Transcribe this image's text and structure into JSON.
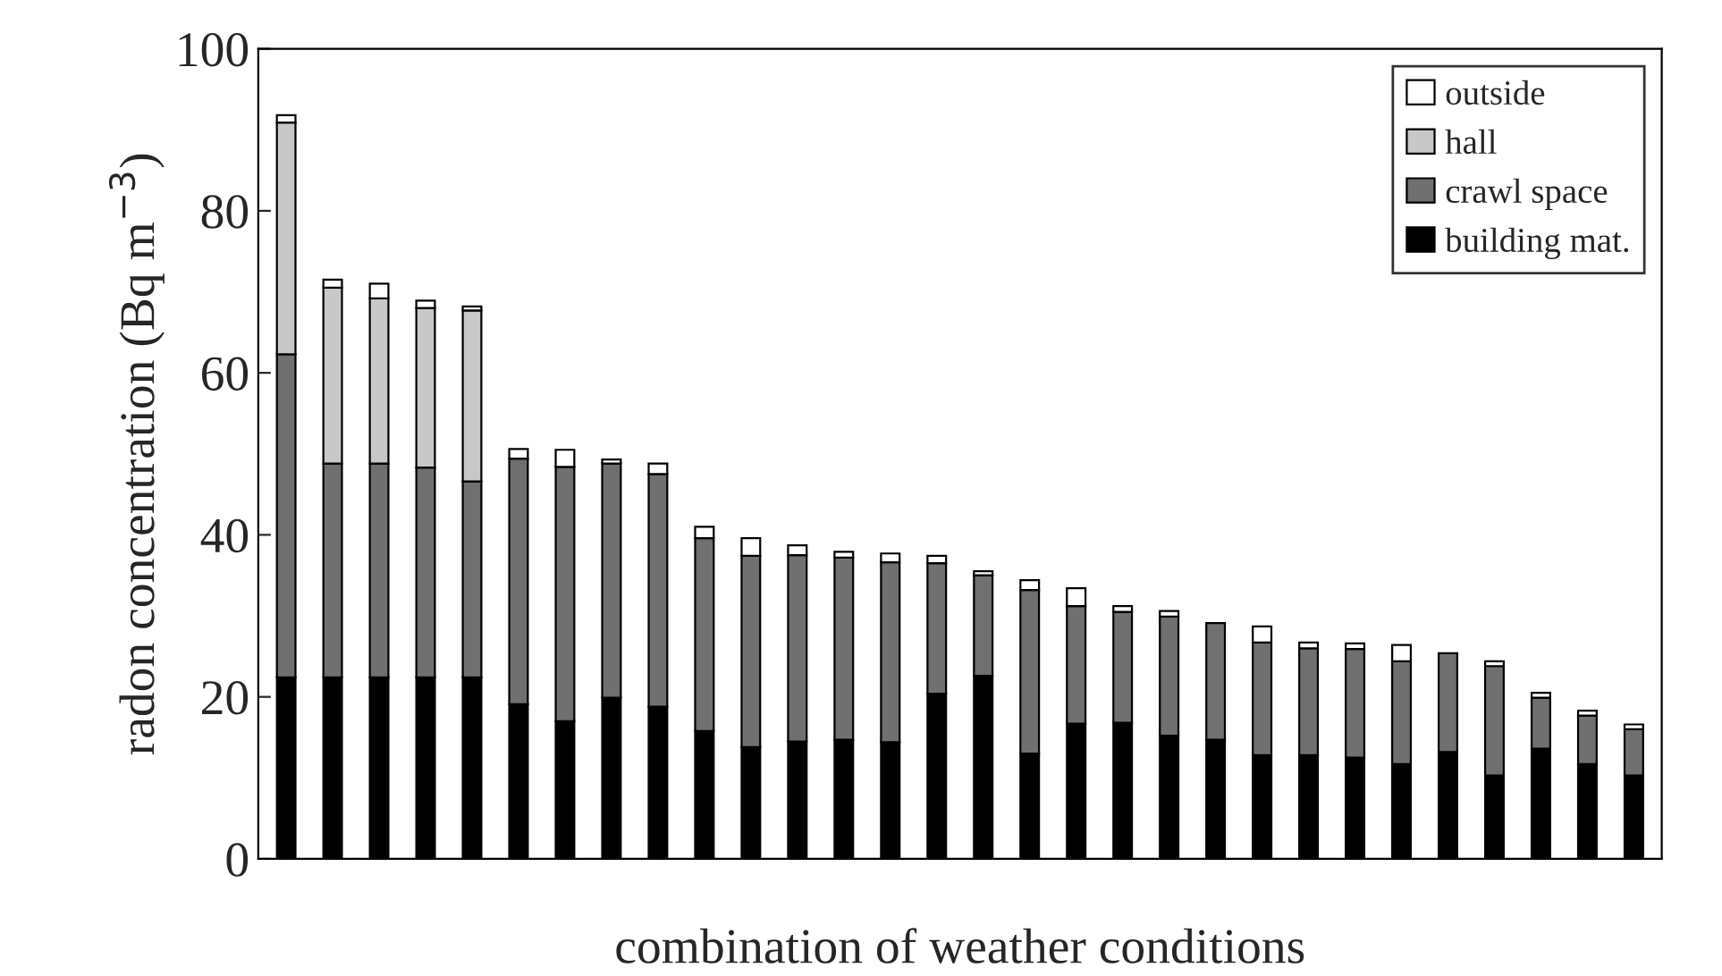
{
  "chart_data": {
    "type": "bar",
    "stacked": true,
    "xlabel": "combination of weather conditions",
    "ylabel": "radon concentration (Bq m$^{−3}$)",
    "categories": [
      null,
      null,
      null,
      null,
      null,
      null,
      null,
      null,
      null,
      null,
      null,
      null,
      null,
      null,
      null,
      null,
      null,
      null,
      null,
      null,
      null,
      null,
      null,
      null,
      null,
      null,
      null,
      null,
      null,
      null
    ],
    "series": [
      {
        "name": "building mat.",
        "color": "#000000",
        "values": [
          22.4,
          22.4,
          22.4,
          22.4,
          22.4,
          19.1,
          17,
          19.9,
          18.8,
          15.8,
          13.8,
          14.5,
          14.7,
          14.4,
          20.4,
          22.6,
          13.0,
          16.7,
          16.8,
          15.2,
          14.7,
          12.8,
          12.8,
          12.5,
          11.7,
          13.2,
          10.3,
          13.6,
          11.7,
          10.3
        ]
      },
      {
        "name": "crawl space",
        "color": "#707070",
        "values": [
          39.9,
          26.4,
          26.4,
          25.9,
          24.2,
          30.3,
          31.4,
          28.9,
          28.7,
          23.8,
          23.6,
          23.0,
          22.5,
          22.2,
          16.1,
          12.4,
          20.2,
          14.5,
          13.7,
          14.7,
          14.4,
          13.9,
          13.2,
          13.4,
          12.7,
          12.2,
          13.5,
          6.3,
          6.0,
          5.7
        ]
      },
      {
        "name": "hall",
        "color": "#c8c8c8",
        "values": [
          28.6,
          21.7,
          20.4,
          19.7,
          21.1,
          null,
          null,
          null,
          null,
          null,
          null,
          null,
          null,
          null,
          null,
          null,
          null,
          null,
          null,
          null,
          null,
          null,
          null,
          null,
          null,
          null,
          null,
          null,
          null,
          null
        ]
      },
      {
        "name": "outside",
        "color": "#ffffff",
        "values": [
          0.9,
          1.0,
          1.8,
          0.9,
          0.5,
          1.2,
          2.1,
          0.5,
          1.3,
          1.4,
          2.2,
          1.2,
          0.7,
          1.1,
          0.9,
          0.5,
          1.2,
          2.2,
          0.7,
          0.7,
          null,
          2.0,
          0.7,
          0.7,
          2.0,
          null,
          0.6,
          0.6,
          0.6,
          0.6
        ]
      }
    ],
    "ylim": [
      0,
      100
    ],
    "yticks": [
      0,
      20,
      40,
      60,
      80,
      100
    ],
    "grid": false,
    "legend": "top right",
    "tick_labels": "y"
  }
}
